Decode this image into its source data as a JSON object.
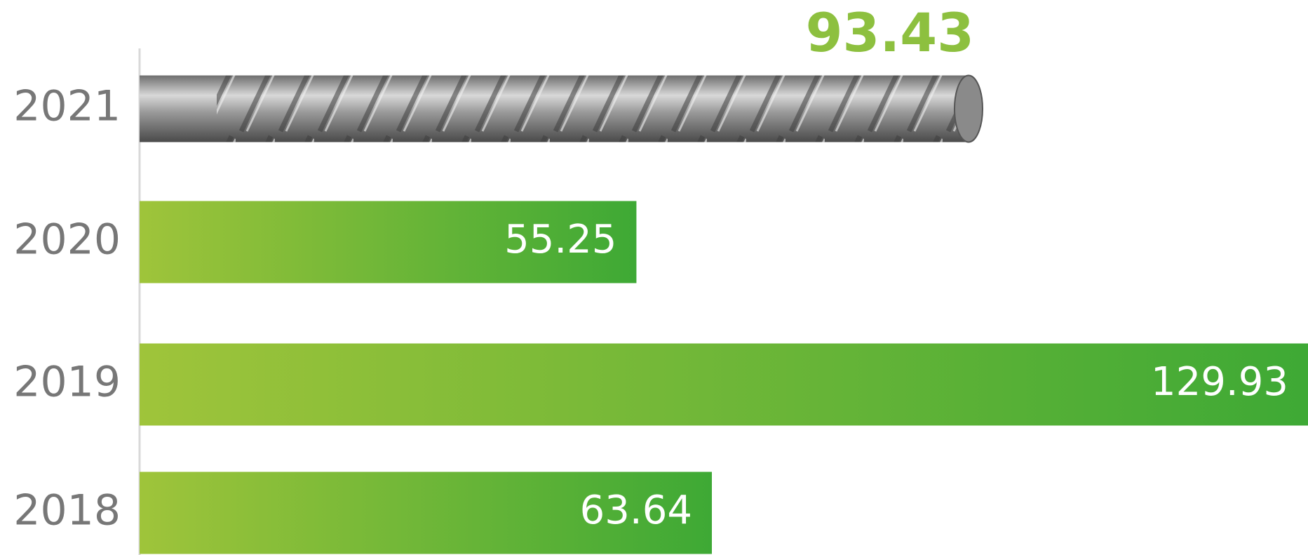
{
  "chart_data": {
    "type": "hbar",
    "categories": [
      "2021",
      "2020",
      "2019",
      "2018"
    ],
    "values": [
      93.43,
      55.25,
      129.93,
      63.64
    ],
    "gradient": [
      "#9fc43a",
      "#3ea935"
    ],
    "label_color": "#8dc03f"
  }
}
